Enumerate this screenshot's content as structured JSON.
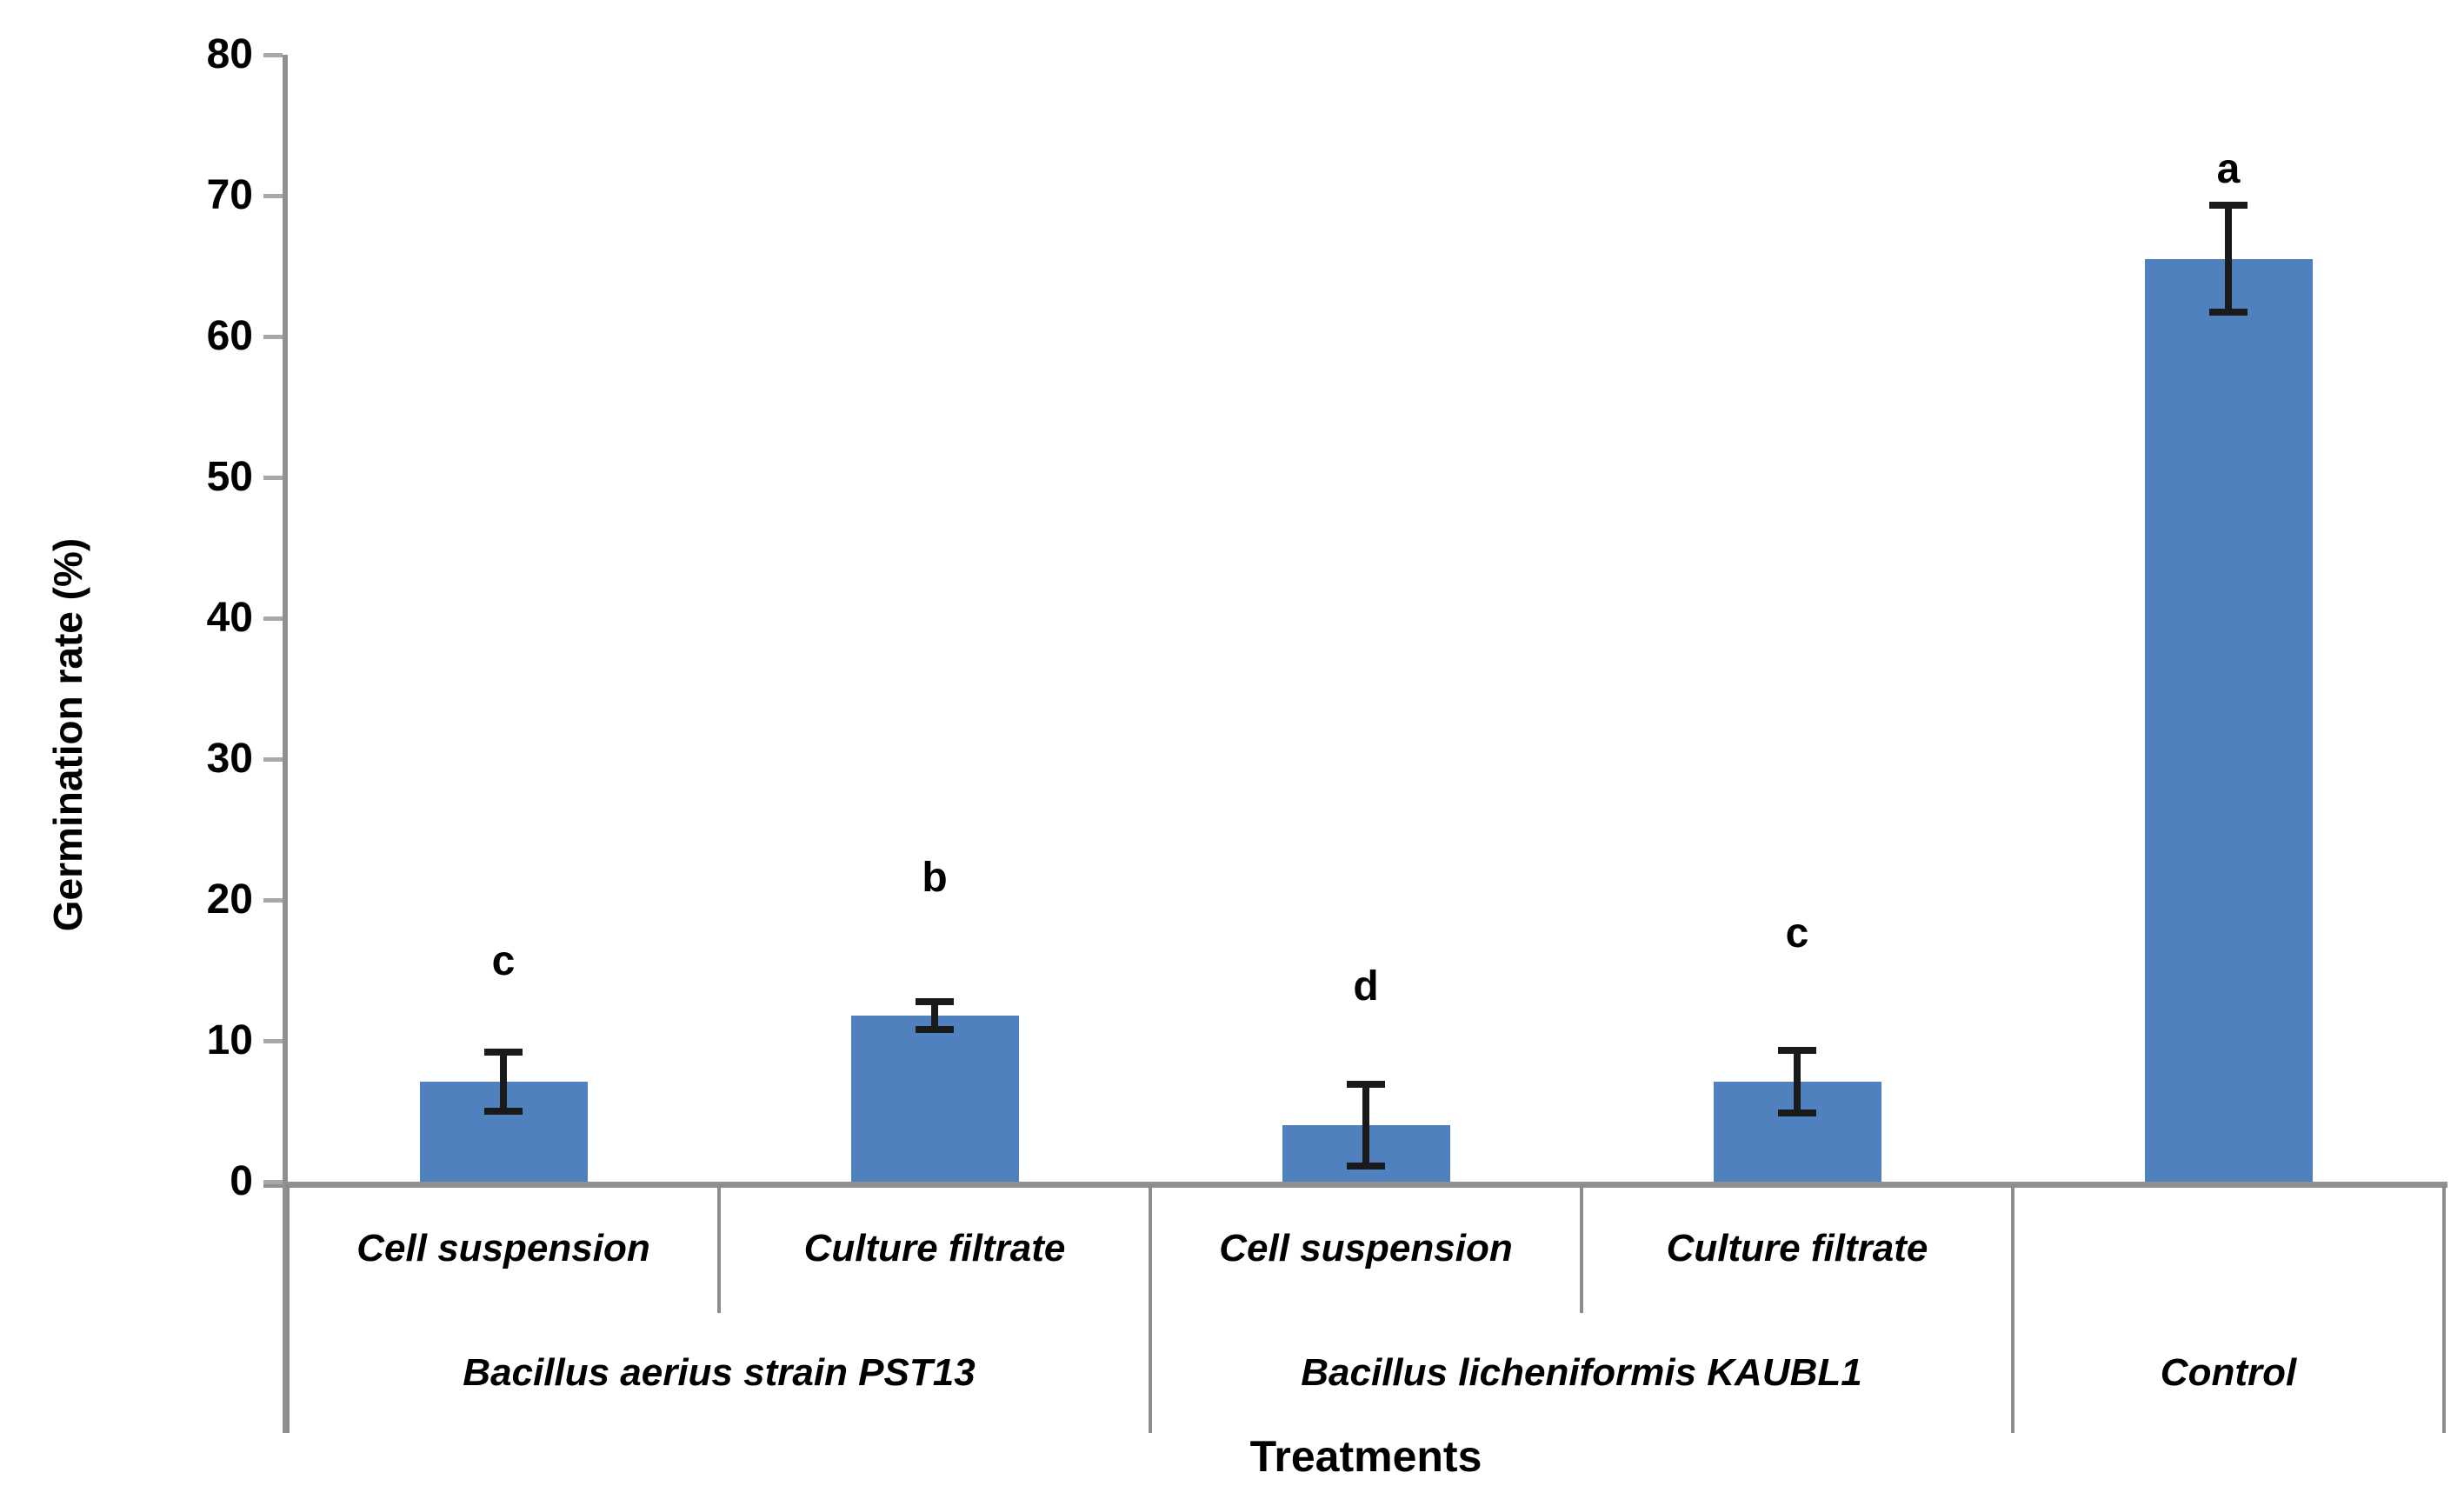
{
  "figure": {
    "background": "#ffffff",
    "bar_color": "#4E81BD",
    "axis_color": "#909090",
    "tick_color": "#a8a8a8",
    "table_line_color": "#8c8c8c",
    "error_bar_color": "#1a1a1a",
    "text_color": "#000000"
  },
  "chart_data": {
    "type": "bar",
    "title": "",
    "xlabel": "Treatments",
    "ylabel": "Germination rate (%)",
    "ylim": [
      0,
      80
    ],
    "yticks": [
      0,
      10,
      20,
      30,
      40,
      50,
      60,
      70,
      80
    ],
    "grid": false,
    "legend": "none",
    "categories": [
      "Cell suspension",
      "Culture filtrate",
      "Cell suspension",
      "Culture filtrate",
      ""
    ],
    "groups": [
      {
        "label": "Bacillus aerius strain PST13",
        "span": [
          0,
          1
        ]
      },
      {
        "label": "Bacillus licheniformis KAUBL1",
        "span": [
          2,
          3
        ]
      },
      {
        "label": "Control",
        "span": [
          4,
          4
        ]
      }
    ],
    "series": [
      {
        "name": "Germination rate (%)",
        "values": [
          7.1,
          11.8,
          4.0,
          7.1,
          65.5
        ],
        "errors": [
          2.1,
          1.0,
          2.9,
          2.2,
          3.8
        ],
        "sig_letters": [
          "c",
          "b",
          "d",
          "c",
          "a"
        ],
        "sig_letter_y": [
          15.5,
          21.4,
          13.7,
          17.5,
          71.7
        ]
      }
    ]
  }
}
